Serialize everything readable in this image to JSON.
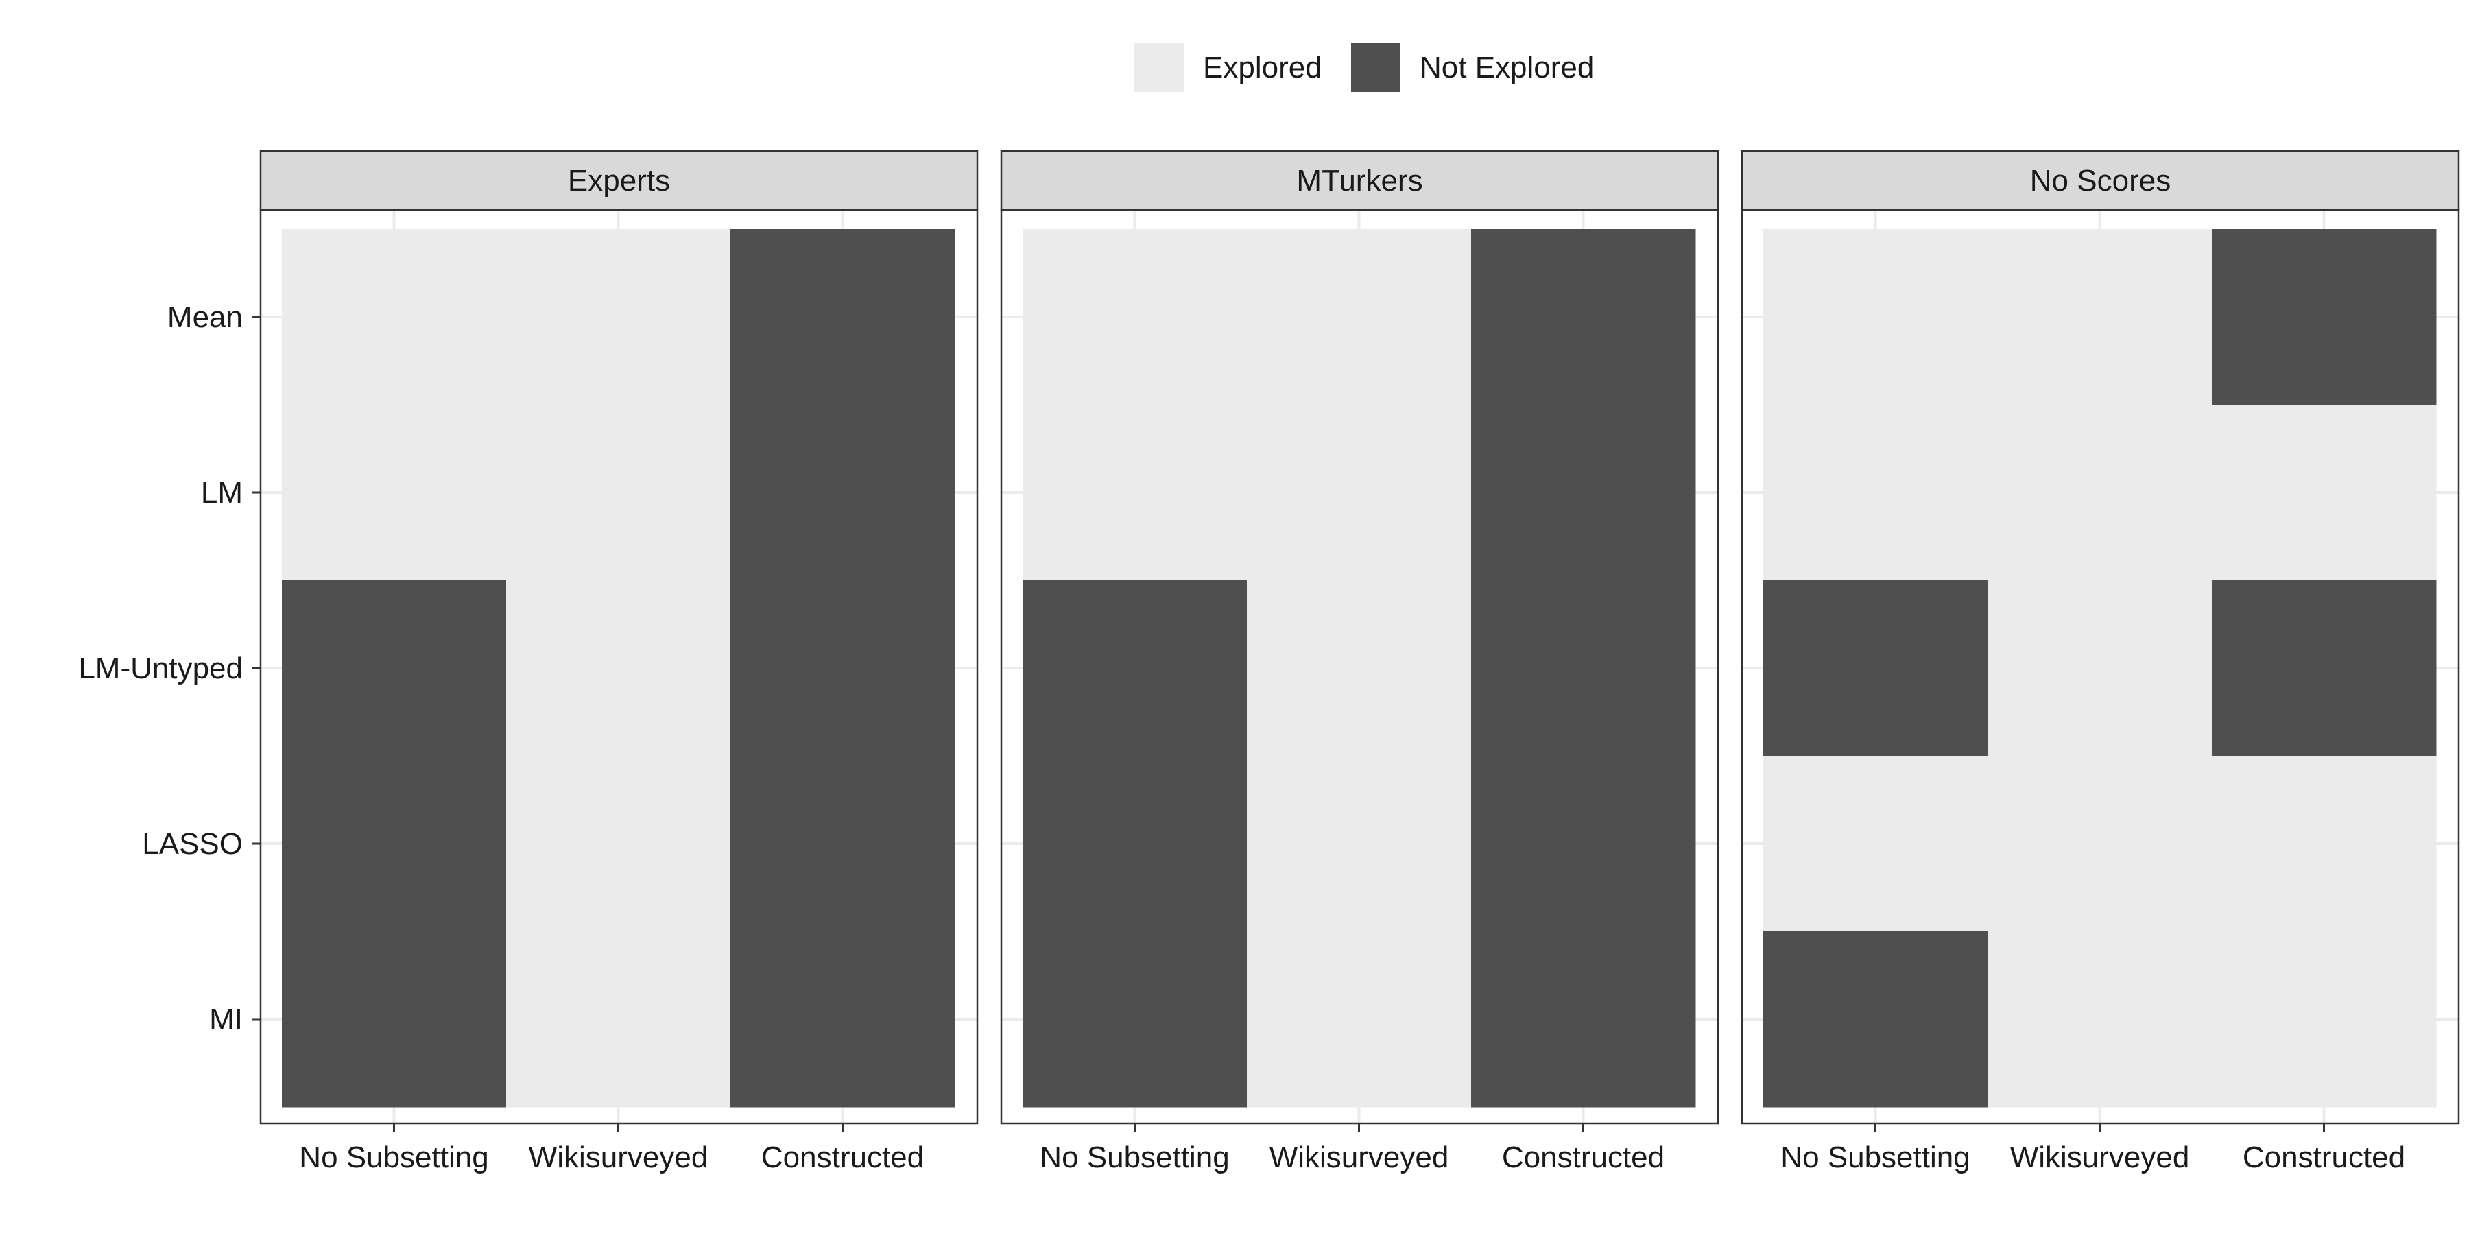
{
  "chart_data": {
    "type": "heatmap",
    "legend": {
      "position": "top",
      "entries": [
        {
          "label": "Explored",
          "color": "#EBEBEB"
        },
        {
          "label": "Not Explored",
          "color": "#4F4F4F"
        }
      ]
    },
    "x_categories": [
      "No Subsetting",
      "Wikisurveyed",
      "Constructed"
    ],
    "y_categories": [
      "Mean",
      "LM",
      "LM-Untyped",
      "LASSO",
      "MI"
    ],
    "grid": true,
    "panels": [
      {
        "title": "Experts",
        "cells": [
          [
            "Explored",
            "Explored",
            "Not Explored"
          ],
          [
            "Explored",
            "Explored",
            "Not Explored"
          ],
          [
            "Not Explored",
            "Explored",
            "Not Explored"
          ],
          [
            "Not Explored",
            "Explored",
            "Not Explored"
          ],
          [
            "Not Explored",
            "Explored",
            "Not Explored"
          ]
        ]
      },
      {
        "title": "MTurkers",
        "cells": [
          [
            "Explored",
            "Explored",
            "Not Explored"
          ],
          [
            "Explored",
            "Explored",
            "Not Explored"
          ],
          [
            "Not Explored",
            "Explored",
            "Not Explored"
          ],
          [
            "Not Explored",
            "Explored",
            "Not Explored"
          ],
          [
            "Not Explored",
            "Explored",
            "Not Explored"
          ]
        ]
      },
      {
        "title": "No Scores",
        "cells": [
          [
            "Explored",
            "Explored",
            "Not Explored"
          ],
          [
            "Explored",
            "Explored",
            "Explored"
          ],
          [
            "Not Explored",
            "Explored",
            "Not Explored"
          ],
          [
            "Explored",
            "Explored",
            "Explored"
          ],
          [
            "Not Explored",
            "Explored",
            "Explored"
          ]
        ]
      }
    ]
  }
}
